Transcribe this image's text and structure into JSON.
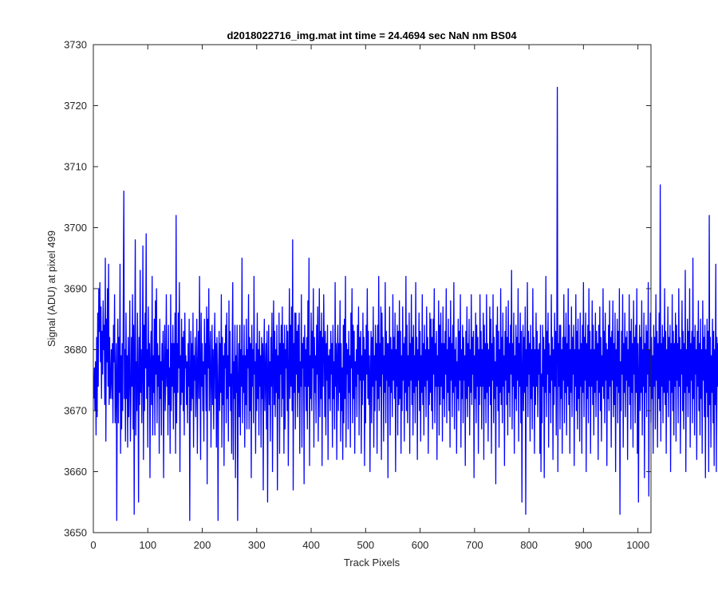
{
  "figure": {
    "title": "d2018022716_img.mat int time = 24.4694 sec  NaN nm BS04",
    "xlabel": "Track Pixels",
    "ylabel": "Signal (ADU) at pixel 499"
  },
  "chart_data": {
    "type": "line",
    "title": "d2018022716_img.mat int time = 24.4694 sec  NaN nm BS04",
    "xlabel": "Track Pixels",
    "ylabel": "Signal (ADU) at pixel 499",
    "xlim": [
      0,
      1024
    ],
    "ylim": [
      3650,
      3730
    ],
    "xticks": [
      0,
      100,
      200,
      300,
      400,
      500,
      600,
      700,
      800,
      900,
      1000
    ],
    "yticks": [
      3650,
      3660,
      3670,
      3680,
      3690,
      3700,
      3710,
      3720,
      3730
    ],
    "grid": false,
    "line_color": "#0000ff",
    "series": [
      {
        "x_start": 1,
        "x_step": 1,
        "note_points": 1024,
        "values": [
          3672,
          3677,
          3670,
          3678,
          3666,
          3682,
          3669,
          3686,
          3674,
          3690,
          3683,
          3691,
          3678,
          3687,
          3672,
          3683,
          3676,
          3688,
          3680,
          3684,
          3671,
          3695,
          3665,
          3685,
          3678,
          3690,
          3674,
          3694,
          3671,
          3682,
          3672,
          3675,
          3680,
          3672,
          3681,
          3668,
          3684,
          3678,
          3689,
          3668,
          3674,
          3681,
          3652,
          3676,
          3685,
          3668,
          3682,
          3673,
          3694,
          3663,
          3679,
          3667,
          3681,
          3670,
          3688,
          3706,
          3672,
          3680,
          3665,
          3686,
          3672,
          3679,
          3664,
          3682,
          3669,
          3676,
          3688,
          3665,
          3671,
          3682,
          3674,
          3689,
          3667,
          3684,
          3653,
          3680,
          3698,
          3666,
          3678,
          3670,
          3686,
          3676,
          3655,
          3682,
          3671,
          3693,
          3673,
          3680,
          3668,
          3678,
          3697,
          3662,
          3684,
          3670,
          3686,
          3677,
          3699,
          3672,
          3680,
          3664,
          3687,
          3674,
          3681,
          3659,
          3678,
          3683,
          3671,
          3692,
          3666,
          3679,
          3673,
          3685,
          3666,
          3688,
          3676,
          3690,
          3668,
          3681,
          3674,
          3679,
          3663,
          3685,
          3672,
          3678,
          3666,
          3681,
          3675,
          3683,
          3659,
          3677,
          3684,
          3670,
          3676,
          3689,
          3674,
          3680,
          3666,
          3684,
          3671,
          3677,
          3663,
          3689,
          3670,
          3681,
          3674,
          3684,
          3667,
          3681,
          3673,
          3686,
          3663,
          3702,
          3668,
          3681,
          3673,
          3686,
          3677,
          3691,
          3660,
          3679,
          3671,
          3685,
          3673,
          3682,
          3670,
          3683,
          3666,
          3686,
          3677,
          3679,
          3671,
          3678,
          3668,
          3681,
          3674,
          3685,
          3652,
          3676,
          3683,
          3670,
          3681,
          3672,
          3686,
          3664,
          3679,
          3675,
          3682,
          3669,
          3675,
          3685,
          3663,
          3677,
          3683,
          3672,
          3692,
          3676,
          3662,
          3686,
          3674,
          3681,
          3670,
          3678,
          3665,
          3685,
          3676,
          3681,
          3670,
          3687,
          3658,
          3685,
          3677,
          3690,
          3670,
          3679,
          3683,
          3664,
          3676,
          3684,
          3671,
          3680,
          3667,
          3678,
          3686,
          3672,
          3681,
          3664,
          3682,
          3674,
          3652,
          3677,
          3683,
          3670,
          3681,
          3673,
          3689,
          3664,
          3682,
          3671,
          3679,
          3661,
          3681,
          3677,
          3684,
          3668,
          3686,
          3672,
          3679,
          3665,
          3688,
          3674,
          3683,
          3670,
          3676,
          3663,
          3681,
          3691,
          3662,
          3678,
          3672,
          3684,
          3659,
          3679,
          3673,
          3684,
          3652,
          3675,
          3681,
          3669,
          3684,
          3666,
          3680,
          3674,
          3695,
          3668,
          3679,
          3673,
          3684,
          3664,
          3679,
          3671,
          3685,
          3667,
          3680,
          3677,
          3689,
          3667,
          3682,
          3670,
          3681,
          3659,
          3684,
          3674,
          3680,
          3668,
          3692,
          3676,
          3678,
          3663,
          3681,
          3670,
          3686,
          3672,
          3680,
          3666,
          3683,
          3674,
          3679,
          3664,
          3682,
          3672,
          3681,
          3657,
          3679,
          3685,
          3670,
          3676,
          3681,
          3667,
          3683,
          3655,
          3676,
          3684,
          3671,
          3678,
          3665,
          3682,
          3674,
          3686,
          3660,
          3677,
          3688,
          3671,
          3683,
          3669,
          3680,
          3673,
          3684,
          3657,
          3679,
          3672,
          3686,
          3663,
          3681,
          3676,
          3684,
          3669,
          3687,
          3672,
          3681,
          3663,
          3684,
          3667,
          3680,
          3677,
          3684,
          3670,
          3683,
          3661,
          3676,
          3690,
          3672,
          3684,
          3674,
          3687,
          3670,
          3698,
          3657,
          3681,
          3673,
          3686,
          3667,
          3686,
          3676,
          3683,
          3669,
          3684,
          3673,
          3686,
          3663,
          3678,
          3674,
          3689,
          3664,
          3681,
          3677,
          3682,
          3658,
          3684,
          3674,
          3680,
          3670,
          3682,
          3667,
          3688,
          3674,
          3695,
          3661,
          3679,
          3672,
          3686,
          3670,
          3683,
          3677,
          3690,
          3664,
          3682,
          3673,
          3679,
          3668,
          3684,
          3676,
          3687,
          3665,
          3678,
          3690,
          3669,
          3683,
          3672,
          3686,
          3661,
          3682,
          3674,
          3689,
          3680,
          3669,
          3683,
          3666,
          3681,
          3675,
          3684,
          3662,
          3679,
          3672,
          3680,
          3670,
          3683,
          3676,
          3681,
          3664,
          3684,
          3672,
          3678,
          3667,
          3691,
          3674,
          3681,
          3662,
          3679,
          3684,
          3670,
          3681,
          3673,
          3688,
          3665,
          3681,
          3670,
          3677,
          3662,
          3684,
          3668,
          3685,
          3672,
          3692,
          3664,
          3681,
          3676,
          3680,
          3667,
          3683,
          3673,
          3679,
          3664,
          3686,
          3677,
          3690,
          3668,
          3684,
          3672,
          3683,
          3663,
          3678,
          3674,
          3680,
          3669,
          3684,
          3676,
          3687,
          3666,
          3682,
          3675,
          3683,
          3663,
          3679,
          3671,
          3686,
          3675,
          3682,
          3661,
          3680,
          3668,
          3684,
          3676,
          3690,
          3672,
          3683,
          3671,
          3679,
          3660,
          3676,
          3683,
          3668,
          3682,
          3674,
          3687,
          3664,
          3679,
          3670,
          3684,
          3675,
          3681,
          3663,
          3684,
          3672,
          3692,
          3670,
          3681,
          3674,
          3687,
          3662,
          3686,
          3676,
          3682,
          3665,
          3679,
          3673,
          3691,
          3668,
          3683,
          3675,
          3681,
          3659,
          3681,
          3674,
          3687,
          3666,
          3682,
          3673,
          3680,
          3669,
          3689,
          3675,
          3682,
          3672,
          3686,
          3660,
          3680,
          3674,
          3684,
          3666,
          3683,
          3671,
          3688,
          3672,
          3683,
          3663,
          3679,
          3670,
          3687,
          3675,
          3681,
          3665,
          3682,
          3673,
          3692,
          3670,
          3684,
          3668,
          3679,
          3674,
          3686,
          3663,
          3681,
          3675,
          3689,
          3671,
          3682,
          3666,
          3684,
          3673,
          3679,
          3668,
          3691,
          3674,
          3682,
          3662,
          3680,
          3675,
          3686,
          3670,
          3683,
          3665,
          3679,
          3673,
          3689,
          3671,
          3681,
          3666,
          3684,
          3674,
          3680,
          3669,
          3687,
          3675,
          3682,
          3663,
          3680,
          3671,
          3686,
          3673,
          3685,
          3670,
          3682,
          3667,
          3685,
          3676,
          3690,
          3668,
          3681,
          3674,
          3683,
          3662,
          3679,
          3674,
          3688,
          3666,
          3684,
          3671,
          3686,
          3674,
          3681,
          3665,
          3687,
          3672,
          3681,
          3669,
          3683,
          3676,
          3690,
          3668,
          3680,
          3673,
          3685,
          3670,
          3682,
          3664,
          3688,
          3675,
          3681,
          3669,
          3684,
          3673,
          3691,
          3667,
          3680,
          3674,
          3682,
          3663,
          3678,
          3672,
          3685,
          3670,
          3683,
          3675,
          3689,
          3664,
          3680,
          3672,
          3684,
          3668,
          3682,
          3675,
          3679,
          3661,
          3683,
          3672,
          3687,
          3669,
          3681,
          3674,
          3685,
          3666,
          3680,
          3673,
          3689,
          3671,
          3682,
          3676,
          3683,
          3659,
          3679,
          3672,
          3686,
          3668,
          3684,
          3674,
          3682,
          3663,
          3680,
          3671,
          3689,
          3674,
          3683,
          3667,
          3680,
          3674,
          3686,
          3662,
          3684,
          3672,
          3681,
          3668,
          3689,
          3673,
          3681,
          3665,
          3680,
          3674,
          3687,
          3671,
          3685,
          3663,
          3681,
          3675,
          3689,
          3668,
          3682,
          3672,
          3678,
          3658,
          3684,
          3674,
          3687,
          3670,
          3683,
          3664,
          3680,
          3673,
          3690,
          3671,
          3682,
          3668,
          3686,
          3674,
          3679,
          3661,
          3683,
          3675,
          3687,
          3671,
          3682,
          3666,
          3688,
          3673,
          3681,
          3669,
          3684,
          3676,
          3693,
          3667,
          3681,
          3674,
          3686,
          3663,
          3679,
          3672,
          3684,
          3670,
          3682,
          3675,
          3690,
          3665,
          3681,
          3674,
          3686,
          3668,
          3683,
          3655,
          3677,
          3684,
          3670,
          3682,
          3673,
          3687,
          3653,
          3680,
          3674,
          3691,
          3669,
          3683,
          3676,
          3681,
          3665,
          3684,
          3672,
          3680,
          3667,
          3690,
          3674,
          3682,
          3663,
          3680,
          3671,
          3686,
          3674,
          3683,
          3669,
          3680,
          3676,
          3681,
          3663,
          3684,
          3660,
          3676,
          3668,
          3684,
          3674,
          3682,
          3659,
          3680,
          3673,
          3692,
          3669,
          3683,
          3676,
          3686,
          3664,
          3681,
          3673,
          3679,
          3668,
          3689,
          3675,
          3682,
          3662,
          3680,
          3671,
          3686,
          3674,
          3683,
          3666,
          3681,
          3723,
          3660,
          3681,
          3674,
          3684,
          3667,
          3684,
          3672,
          3680,
          3663,
          3682,
          3675,
          3689,
          3668,
          3682,
          3673,
          3686,
          3666,
          3681,
          3674,
          3690,
          3671,
          3684,
          3663,
          3680,
          3673,
          3687,
          3669,
          3682,
          3676,
          3684,
          3661,
          3680,
          3674,
          3689,
          3670,
          3683,
          3667,
          3685,
          3672,
          3680,
          3665,
          3686,
          3674,
          3681,
          3663,
          3684,
          3673,
          3691,
          3669,
          3682,
          3675,
          3686,
          3660,
          3681,
          3672,
          3684,
          3668,
          3690,
          3674,
          3683,
          3663,
          3680,
          3674,
          3688,
          3671,
          3684,
          3666,
          3680,
          3673,
          3686,
          3669,
          3683,
          3675,
          3681,
          3662,
          3684,
          3673,
          3687,
          3670,
          3682,
          3665,
          3679,
          3674,
          3690,
          3672,
          3683,
          3668,
          3686,
          3675,
          3681,
          3661,
          3680,
          3672,
          3684,
          3670,
          3688,
          3674,
          3682,
          3664,
          3683,
          3675,
          3688,
          3669,
          3681,
          3671,
          3686,
          3660,
          3680,
          3674,
          3685,
          3668,
          3683,
          3673,
          3690,
          3653,
          3678,
          3670,
          3683,
          3676,
          3689,
          3664,
          3681,
          3673,
          3686,
          3669,
          3682,
          3675,
          3683,
          3662,
          3680,
          3674,
          3689,
          3671,
          3683,
          3667,
          3685,
          3673,
          3681,
          3664,
          3688,
          3676,
          3682,
          3668,
          3684,
          3673,
          3690,
          3663,
          3681,
          3655,
          3676,
          3684,
          3670,
          3682,
          3673,
          3688,
          3666,
          3680,
          3674,
          3686,
          3659,
          3681,
          3673,
          3684,
          3669,
          3683,
          3676,
          3691,
          3656,
          3680,
          3674,
          3686,
          3668,
          3682,
          3672,
          3679,
          3663,
          3684,
          3674,
          3682,
          3667,
          3689,
          3675,
          3683,
          3664,
          3681,
          3672,
          3686,
          3670,
          3707,
          3665,
          3681,
          3674,
          3684,
          3668,
          3682,
          3673,
          3690,
          3671,
          3683,
          3663,
          3680,
          3673,
          3687,
          3669,
          3682,
          3675,
          3684,
          3660,
          3681,
          3673,
          3689,
          3670,
          3683,
          3666,
          3681,
          3674,
          3686,
          3665,
          3684,
          3675,
          3681,
          3668,
          3690,
          3674,
          3682,
          3663,
          3680,
          3676,
          3688,
          3670,
          3683,
          3667,
          3681,
          3673,
          3693,
          3660,
          3680,
          3674,
          3685,
          3669,
          3683,
          3673,
          3690,
          3664,
          3681,
          3675,
          3683,
          3668,
          3695,
          3672,
          3682,
          3666,
          3684,
          3676,
          3680,
          3662,
          3683,
          3674,
          3688,
          3670,
          3681,
          3666,
          3685,
          3672,
          3680,
          3663,
          3688,
          3675,
          3682,
          3669,
          3684,
          3659,
          3680,
          3673,
          3685,
          3669,
          3683,
          3660,
          3702,
          3671,
          3682,
          3664,
          3679,
          3673,
          3685,
          3668,
          3683,
          3661,
          3680,
          3671,
          3694,
          3660,
          3682,
          3674,
          3681,
          3666,
          3685,
          3670,
          3680,
          3674,
          3685
        ]
      }
    ]
  }
}
